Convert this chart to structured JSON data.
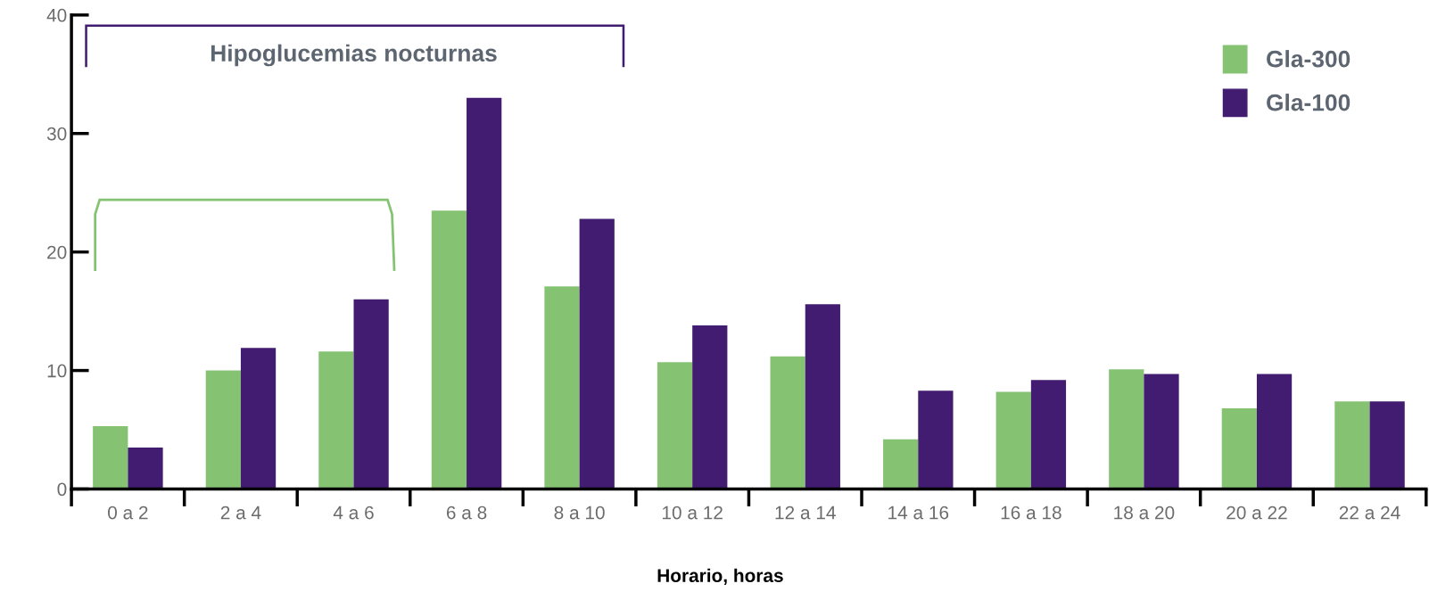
{
  "chart_data": {
    "type": "bar",
    "xlabel": "Horario, horas",
    "categories": [
      "0 a 2",
      "2 a 4",
      "4 a 6",
      "6 a 8",
      "8 a 10",
      "10 a 12",
      "12 a 14",
      "14 a 16",
      "16 a 18",
      "18 a 20",
      "20 a 22",
      "22 a 24"
    ],
    "series": [
      {
        "name": "Gla-300",
        "color": "#85c373",
        "values": [
          5.3,
          10.0,
          11.6,
          23.5,
          17.1,
          10.7,
          11.2,
          4.2,
          8.2,
          10.1,
          6.8,
          7.4
        ]
      },
      {
        "name": "Gla-100",
        "color": "#421c70",
        "values": [
          3.5,
          11.9,
          16.0,
          33.0,
          22.8,
          13.8,
          15.6,
          8.3,
          9.2,
          9.7,
          9.7,
          7.4
        ]
      }
    ],
    "ylim": [
      0,
      40
    ],
    "yticks": [
      0,
      10,
      20,
      30,
      40
    ],
    "grid": false,
    "legend": "top right",
    "annotations": [
      "Hipoglucemias nocturnas"
    ]
  }
}
